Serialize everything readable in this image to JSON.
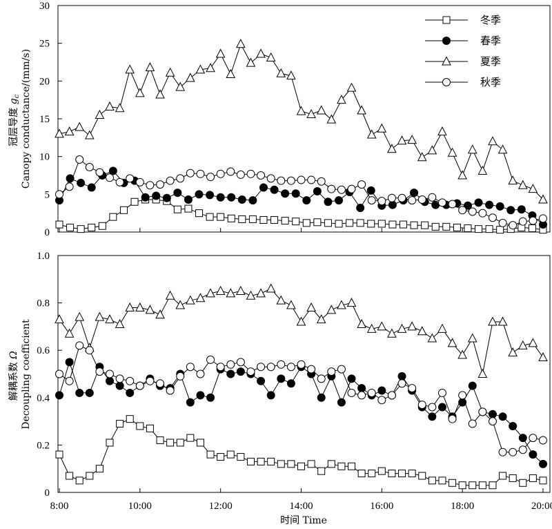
{
  "chart_data": [
    {
      "type": "line",
      "panel": "top",
      "ylim": [
        0,
        30
      ],
      "yticks": [
        0,
        5,
        10,
        15,
        20,
        25,
        30
      ],
      "ylabel": {
        "line1_prefix": "冠层导度 ",
        "line1_symbol": "g",
        "line1_sub": "c",
        "line2": "Canopy conductance/(mm/s)"
      },
      "legend": {
        "placement": "top-right"
      },
      "series": [
        {
          "name": "冬季",
          "marker": "square",
          "values": [
            1.0,
            0.6,
            0.4,
            0.6,
            0.8,
            2.0,
            2.9,
            4.0,
            4.3,
            4.3,
            4.1,
            3.0,
            3.1,
            2.5,
            2.0,
            2.0,
            1.8,
            1.7,
            1.7,
            1.6,
            1.6,
            1.5,
            1.4,
            1.2,
            1.3,
            1.2,
            1.1,
            1.2,
            1.2,
            1.1,
            1.1,
            1.0,
            1.0,
            0.9,
            0.9,
            0.7,
            0.7,
            0.6,
            0.5,
            0.4,
            0.4,
            0.3,
            0.4,
            0.6,
            0.5,
            0.3
          ]
        },
        {
          "name": "春季",
          "marker": "filled-circle",
          "values": [
            4.2,
            7.1,
            6.5,
            5.9,
            7.5,
            8.1,
            6.5,
            6.8,
            4.6,
            4.8,
            4.5,
            5.2,
            4.3,
            5.0,
            4.9,
            4.6,
            4.6,
            4.3,
            4.2,
            5.9,
            5.6,
            5.1,
            5.1,
            4.2,
            5.4,
            4.0,
            4.2,
            5.3,
            3.2,
            5.5,
            3.5,
            3.6,
            4.2,
            5.2,
            4.0,
            3.6,
            3.6,
            3.8,
            3.5,
            3.9,
            3.6,
            3.4,
            2.9,
            3.0,
            2.2,
            1.0
          ]
        },
        {
          "name": "夏季",
          "marker": "triangle",
          "values": [
            13.0,
            13.3,
            13.9,
            12.8,
            15.5,
            16.6,
            16.4,
            21.5,
            18.4,
            21.8,
            18.2,
            21.1,
            19.2,
            20.4,
            21.5,
            21.7,
            23.6,
            20.9,
            24.9,
            22.4,
            23.6,
            23.1,
            21.0,
            20.7,
            16.0,
            15.6,
            16.1,
            14.9,
            17.5,
            19.1,
            16.1,
            12.9,
            13.7,
            11.0,
            12.1,
            12.2,
            9.9,
            10.8,
            13.3,
            10.5,
            7.5,
            10.9,
            8.1,
            12.0,
            10.9,
            6.8,
            6.2,
            5.7,
            4.3
          ]
        },
        {
          "name": "秋季",
          "marker": "open-circle",
          "values": [
            5.0,
            6.0,
            9.6,
            8.6,
            7.9,
            7.2,
            6.6,
            7.1,
            6.6,
            6.2,
            6.3,
            6.8,
            7.1,
            7.8,
            7.7,
            7.3,
            7.7,
            8.0,
            7.6,
            7.7,
            7.5,
            7.1,
            6.8,
            6.8,
            6.9,
            6.9,
            6.7,
            5.7,
            5.6,
            5.7,
            6.3,
            4.2,
            4.1,
            4.5,
            4.5,
            4.2,
            4.3,
            4.6,
            3.9,
            3.7,
            2.9,
            2.7,
            2.5,
            1.9,
            1.2,
            0.9,
            1.4,
            1.5,
            1.8
          ]
        }
      ]
    },
    {
      "type": "line",
      "panel": "bottom",
      "ylim": [
        0,
        1.0
      ],
      "yticks": [
        0,
        0.2,
        0.4,
        0.6,
        0.8,
        1.0
      ],
      "ylabel": {
        "line1_prefix": "解耦系数 ",
        "line1_symbol": "Ω",
        "line2": "Decoupling coefficient"
      },
      "series": [
        {
          "name": "冬季",
          "marker": "square",
          "values": [
            0.16,
            0.07,
            0.05,
            0.07,
            0.1,
            0.21,
            0.29,
            0.31,
            0.28,
            0.27,
            0.22,
            0.21,
            0.21,
            0.23,
            0.21,
            0.16,
            0.15,
            0.16,
            0.15,
            0.13,
            0.13,
            0.13,
            0.12,
            0.12,
            0.11,
            0.12,
            0.09,
            0.12,
            0.11,
            0.11,
            0.08,
            0.08,
            0.09,
            0.08,
            0.08,
            0.08,
            0.07,
            0.05,
            0.05,
            0.04,
            0.03,
            0.03,
            0.03,
            0.03,
            0.07,
            0.06,
            0.04,
            0.06,
            0.05
          ]
        },
        {
          "name": "春季",
          "marker": "filled-circle",
          "values": [
            0.41,
            0.55,
            0.42,
            0.42,
            0.53,
            0.47,
            0.45,
            0.42,
            0.45,
            0.48,
            0.45,
            0.44,
            0.5,
            0.38,
            0.41,
            0.4,
            0.52,
            0.5,
            0.51,
            0.5,
            0.47,
            0.41,
            0.48,
            0.46,
            0.53,
            0.5,
            0.4,
            0.49,
            0.38,
            0.48,
            0.44,
            0.41,
            0.43,
            0.41,
            0.49,
            0.43,
            0.36,
            0.32,
            0.36,
            0.32,
            0.38,
            0.45,
            0.34,
            0.33,
            0.32,
            0.28,
            0.23,
            0.16,
            0.12
          ]
        },
        {
          "name": "夏季",
          "marker": "triangle",
          "values": [
            0.73,
            0.67,
            0.74,
            0.61,
            0.74,
            0.73,
            0.71,
            0.78,
            0.78,
            0.77,
            0.75,
            0.83,
            0.79,
            0.81,
            0.82,
            0.84,
            0.85,
            0.84,
            0.85,
            0.83,
            0.84,
            0.86,
            0.81,
            0.79,
            0.72,
            0.78,
            0.73,
            0.77,
            0.79,
            0.8,
            0.71,
            0.69,
            0.7,
            0.67,
            0.69,
            0.7,
            0.68,
            0.65,
            0.69,
            0.63,
            0.58,
            0.65,
            0.5,
            0.72,
            0.72,
            0.59,
            0.62,
            0.63,
            0.57
          ]
        },
        {
          "name": "秋季",
          "marker": "open-circle",
          "values": [
            0.5,
            0.47,
            0.62,
            0.6,
            0.51,
            0.5,
            0.48,
            0.47,
            0.45,
            0.47,
            0.46,
            0.43,
            0.49,
            0.53,
            0.5,
            0.56,
            0.53,
            0.54,
            0.55,
            0.51,
            0.53,
            0.53,
            0.54,
            0.53,
            0.54,
            0.52,
            0.48,
            0.51,
            0.52,
            0.42,
            0.41,
            0.42,
            0.39,
            0.41,
            0.46,
            0.44,
            0.37,
            0.36,
            0.42,
            0.31,
            0.41,
            0.29,
            0.34,
            0.3,
            0.17,
            0.17,
            0.18,
            0.23,
            0.22
          ]
        }
      ]
    }
  ],
  "x_axis": {
    "ticks": [
      "8:00",
      "10:00",
      "12:00",
      "14:00",
      "16:00",
      "18:00",
      "20:00"
    ],
    "label": "时间 Time"
  }
}
